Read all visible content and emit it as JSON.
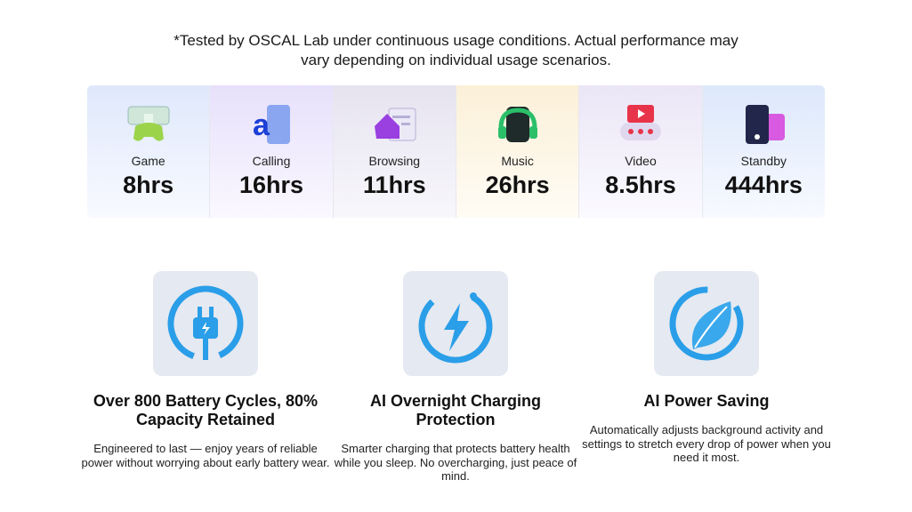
{
  "header": {
    "note": "*Tested by OSCAL Lab under continuous usage conditions. Actual performance may vary depending on individual usage scenarios."
  },
  "stats": [
    {
      "label": "Game",
      "value": "8hrs"
    },
    {
      "label": "Calling",
      "value": "16hrs"
    },
    {
      "label": "Browsing",
      "value": "11hrs"
    },
    {
      "label": "Music",
      "value": "26hrs"
    },
    {
      "label": "Video",
      "value": "8.5hrs"
    },
    {
      "label": "Standby",
      "value": "444hrs"
    }
  ],
  "features": [
    {
      "title": "Over 800 Battery Cycles, 80% Capacity Retained",
      "description": "Engineered to last — enjoy years of reliable power without worrying about early battery wear."
    },
    {
      "title": "AI Overnight Charging Protection",
      "description": "Smarter charging that protects battery health while you sleep. No overcharging, just peace of mind."
    },
    {
      "title": "AI Power Saving",
      "description": "Automatically adjusts background activity and settings to stretch every drop of power when you need it most."
    }
  ]
}
